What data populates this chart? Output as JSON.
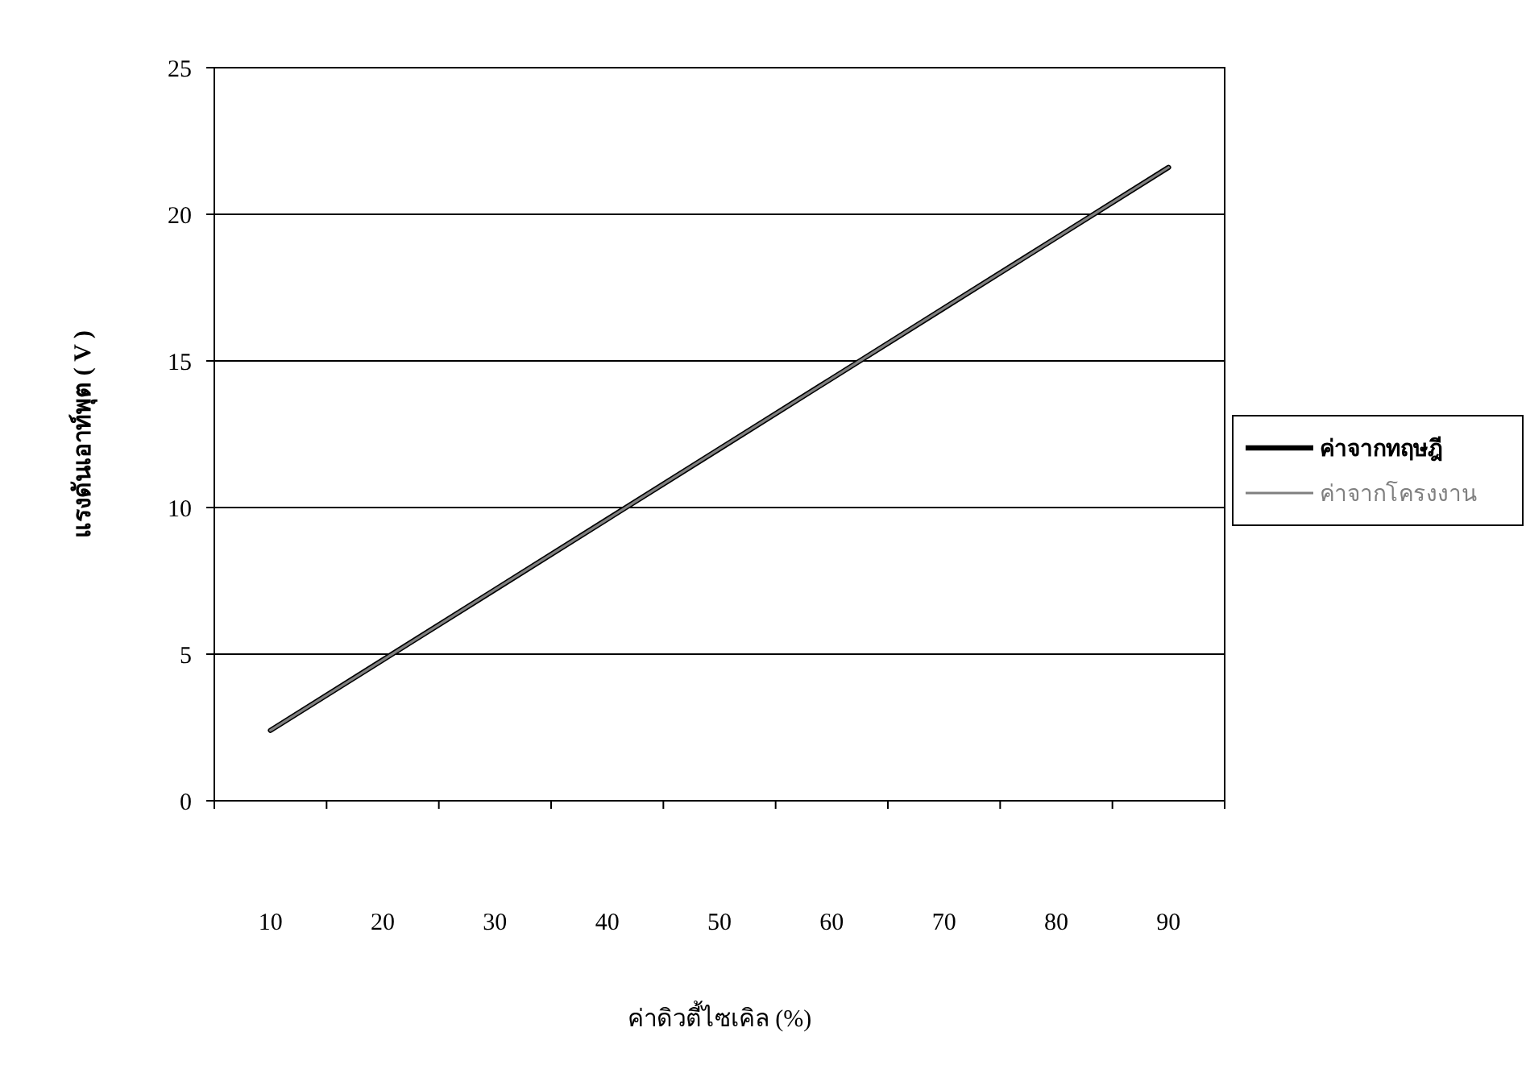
{
  "chart_data": {
    "type": "line",
    "xlabel": "ค่าดิวตี้ไซเคิล (%)",
    "ylabel": "แรงดันเอาท์พุต ( V )",
    "categories": [
      "10",
      "20",
      "30",
      "40",
      "50",
      "60",
      "70",
      "80",
      "90"
    ],
    "series": [
      {
        "name": "ค่าจากทฤษฎี",
        "color": "#000000",
        "values": [
          2.4,
          4.8,
          7.2,
          9.6,
          12,
          14.4,
          16.8,
          19.2,
          21.6
        ]
      },
      {
        "name": "ค่าจากโครงงาน",
        "color": "#808080",
        "values": [
          2.4,
          4.8,
          7.2,
          9.6,
          12,
          14.4,
          16.8,
          19.2,
          21.6
        ]
      }
    ],
    "ylim": [
      0,
      25
    ],
    "yticks": [
      0,
      5,
      10,
      15,
      20,
      25
    ],
    "grid": "y",
    "legend": "right",
    "marker": "none",
    "line_style": "solid"
  }
}
